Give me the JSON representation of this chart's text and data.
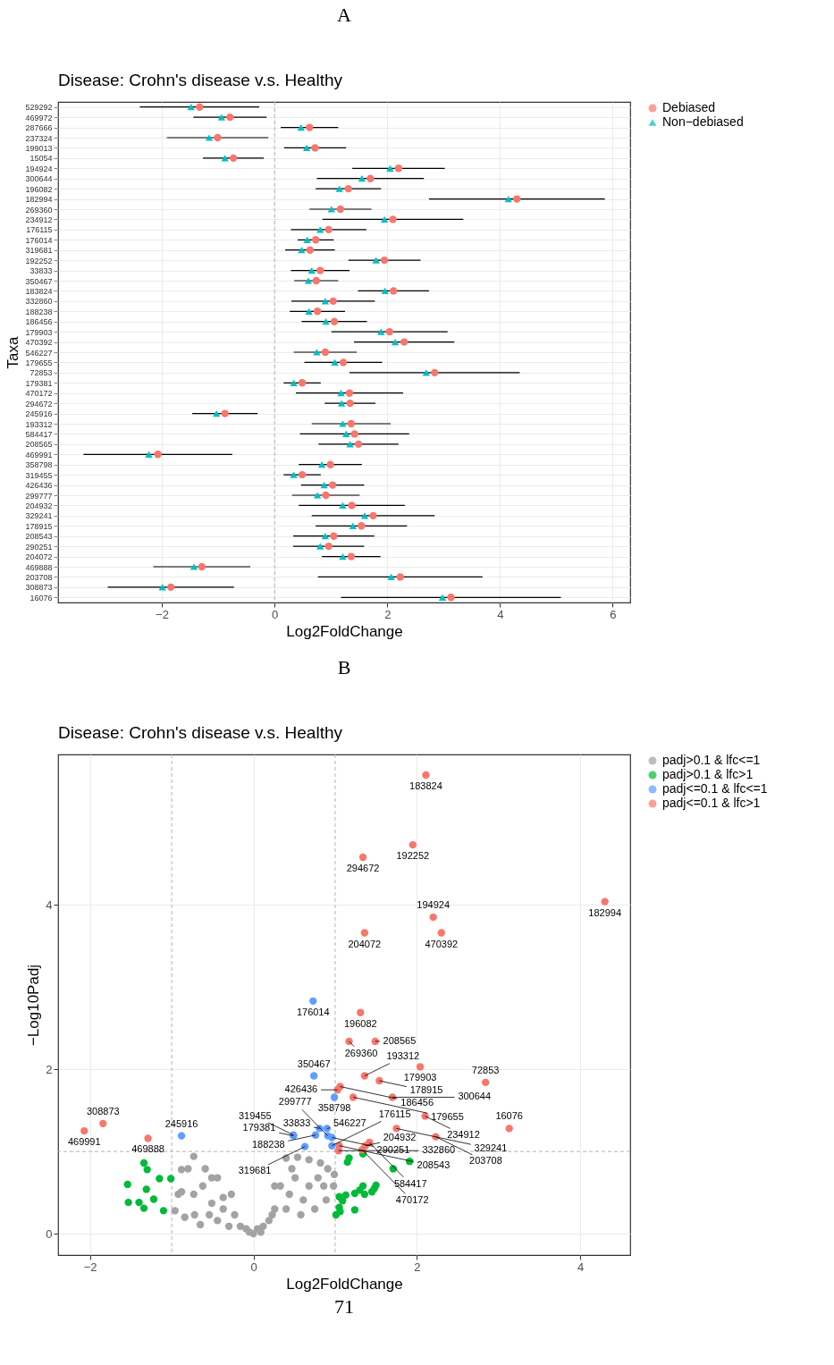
{
  "chart_data": [
    {
      "type": "scatter",
      "orientation": "horizontal",
      "title": "A",
      "subtitle": "Disease: Crohn's disease v.s. Healthy",
      "xlabel": "Log2FoldChange",
      "ylabel": "Taxa",
      "categories": [
        "529292",
        "469972",
        "287666",
        "237324",
        "199013",
        "15054",
        "194924",
        "300644",
        "196082",
        "182994",
        "269360",
        "234912",
        "176115",
        "176014",
        "319681",
        "192252",
        "33833",
        "350467",
        "183824",
        "332860",
        "188238",
        "186456",
        "179903",
        "470392",
        "546227",
        "179655",
        "72853",
        "179381",
        "470172",
        "294672",
        "245916",
        "193312",
        "584417",
        "208565",
        "469991",
        "358798",
        "319455",
        "426436",
        "299777",
        "204932",
        "329241",
        "178915",
        "208543",
        "290251",
        "204072",
        "469888",
        "203708",
        "308873",
        "16076"
      ],
      "series": [
        {
          "name": "Debiased",
          "color": "#f8766d",
          "marker": "circle",
          "values": [
            -1.33,
            -0.79,
            0.62,
            -1.01,
            0.72,
            -0.73,
            2.2,
            1.7,
            1.31,
            4.3,
            1.17,
            2.1,
            0.96,
            0.73,
            0.63,
            1.95,
            0.81,
            0.74,
            2.11,
            1.04,
            0.76,
            1.06,
            2.04,
            2.3,
            0.9,
            1.22,
            2.84,
            0.49,
            1.33,
            1.34,
            -0.88,
            1.36,
            1.42,
            1.49,
            -2.07,
            0.99,
            0.49,
            1.03,
            0.91,
            1.37,
            1.75,
            1.54,
            1.05,
            0.96,
            1.36,
            -1.29,
            2.23,
            -1.84,
            3.13
          ],
          "errors": [
            1.06,
            0.65,
            0.51,
            0.9,
            0.55,
            0.54,
            0.82,
            0.95,
            0.58,
            1.56,
            0.55,
            1.25,
            0.67,
            0.32,
            0.44,
            0.64,
            0.52,
            0.39,
            0.63,
            0.74,
            0.49,
            0.58,
            1.03,
            0.89,
            0.56,
            0.69,
            1.51,
            0.33,
            0.95,
            0.45,
            0.58,
            0.7,
            0.97,
            0.71,
            1.32,
            0.56,
            0.33,
            0.56,
            0.6,
            0.94,
            1.09,
            0.81,
            0.72,
            0.63,
            0.52,
            0.86,
            1.46,
            1.12,
            1.95
          ]
        },
        {
          "name": "Non−debiased",
          "color": "#00bfc4",
          "marker": "triangle",
          "values": [
            -1.48,
            -0.94,
            0.47,
            -1.16,
            0.57,
            -0.88,
            2.05,
            1.55,
            1.15,
            4.15,
            1.01,
            1.95,
            0.81,
            0.58,
            0.48,
            1.8,
            0.66,
            0.6,
            1.96,
            0.9,
            0.61,
            0.91,
            1.89,
            2.14,
            0.75,
            1.07,
            2.69,
            0.34,
            1.18,
            1.19,
            -1.03,
            1.21,
            1.27,
            1.34,
            -2.23,
            0.84,
            0.34,
            0.88,
            0.76,
            1.21,
            1.6,
            1.39,
            0.9,
            0.81,
            1.21,
            -1.43,
            2.07,
            -1.99,
            2.98
          ]
        }
      ],
      "xlim": [
        -3.84,
        6.31
      ],
      "xticks": [
        -2,
        0,
        2,
        4,
        6
      ],
      "ref_lines": [
        {
          "axis": "x",
          "value": 0,
          "color": "#b3b3b3",
          "line_style": "dashed"
        }
      ],
      "grid": true,
      "legend": "right"
    },
    {
      "type": "scatter",
      "title": "B",
      "subtitle": "Disease: Crohn's disease v.s. Healthy",
      "xlabel": "Log2FoldChange",
      "ylabel": "−Log10Padj",
      "marker": "circle",
      "series": [
        {
          "name": "padj>0.1 & lfc<=1",
          "color": "#a3a3a3",
          "x": [
            -0.73,
            -0.88,
            -0.8,
            -0.59,
            -0.51,
            -0.44,
            -0.62,
            -0.88,
            -0.73,
            -0.96,
            -0.84,
            -0.65,
            -0.51,
            -0.37,
            -0.27,
            -0.23,
            -0.09,
            0.0,
            0.12,
            0.23,
            0.33,
            0.4,
            0.54,
            0.68,
            0.82,
            0.91,
            0.79,
            0.51,
            0.44,
            0.61,
            0.86,
            0.98,
            0.75,
            0.58,
            0.26,
            0.19,
            0.4,
            0.99,
            -0.37,
            -0.54,
            -0.72,
            -0.3,
            -0.16,
            0.09,
            -0.05,
            -0.92,
            0.68,
            0.89,
            0.47,
            -0.44,
            0.26,
            0.05
          ],
          "values": [
            0.94,
            0.78,
            0.79,
            0.79,
            0.68,
            0.68,
            0.58,
            0.51,
            0.48,
            0.28,
            0.2,
            0.11,
            0.37,
            0.3,
            0.48,
            0.23,
            0.06,
            0.0,
            0.09,
            0.23,
            0.58,
            0.92,
            0.93,
            0.9,
            0.86,
            0.79,
            0.68,
            0.68,
            0.48,
            0.41,
            0.58,
            0.58,
            0.3,
            0.23,
            0.3,
            0.16,
            0.3,
            0.72,
            0.44,
            0.23,
            0.23,
            0.09,
            0.09,
            0.02,
            0.02,
            0.48,
            0.58,
            0.41,
            0.79,
            0.16,
            0.58,
            0.06
          ]
        },
        {
          "name": "padj>0.1 & lfc>1",
          "color": "#00ba38",
          "x": [
            -1.34,
            -1.3,
            -1.15,
            -1.01,
            -1.54,
            -1.31,
            -1.22,
            -1.53,
            -1.4,
            -1.34,
            -1.1,
            1.17,
            1.15,
            1.34,
            1.91,
            1.71,
            1.5,
            1.48,
            1.45,
            1.34,
            1.3,
            1.24,
            1.36,
            1.13,
            1.05,
            1.09,
            1.24,
            1.05,
            1.03,
            1.01,
            1.06
          ],
          "values": [
            0.86,
            0.78,
            0.67,
            0.67,
            0.6,
            0.54,
            0.42,
            0.38,
            0.38,
            0.31,
            0.28,
            0.92,
            0.87,
            0.97,
            0.88,
            0.79,
            0.59,
            0.55,
            0.51,
            0.58,
            0.53,
            0.49,
            0.48,
            0.47,
            0.45,
            0.4,
            0.29,
            0.32,
            null,
            0.23,
            0.27
          ]
        },
        {
          "name": "padj<=0.1 & lfc<=1",
          "color": "#619cff",
          "x": [
            0.73,
            0.74,
            0.99,
            0.81,
            0.9,
            0.76,
            0.49,
            0.49,
            0.91,
            0.96,
            -0.88,
            0.63,
            0.96
          ],
          "values": [
            2.83,
            1.92,
            1.66,
            1.28,
            1.28,
            1.2,
            1.19,
            1.2,
            1.19,
            1.17,
            1.19,
            1.06,
            1.07
          ]
        },
        {
          "name": "padj<=0.1 & lfc>1",
          "color": "#f8766d",
          "x": [
            2.11,
            1.34,
            1.95,
            4.3,
            2.2,
            2.3,
            1.36,
            1.31,
            1.17,
            1.49,
            2.04,
            1.36,
            1.54,
            1.03,
            1.06,
            1.22,
            1.7,
            2.84,
            1.05,
            1.42,
            1.04,
            1.37,
            1.33,
            2.1,
            1.75,
            2.23,
            3.13,
            -1.84,
            -2.07,
            -1.29
          ],
          "values": [
            5.58,
            4.58,
            4.73,
            4.04,
            3.85,
            3.66,
            3.66,
            2.69,
            2.34,
            2.34,
            2.03,
            1.92,
            1.86,
            1.75,
            1.79,
            1.66,
            1.66,
            1.84,
            1.07,
            1.11,
            1.01,
            1.07,
            1.02,
            1.43,
            1.28,
            1.18,
            1.28,
            1.34,
            1.25,
            1.16
          ]
        }
      ],
      "annotations": [
        {
          "text": "176014",
          "x": 0.73,
          "y": 2.83
        },
        {
          "text": "350467",
          "x": 0.74,
          "y": 1.92
        },
        {
          "text": "358798",
          "x": 0.99,
          "y": 1.66
        },
        {
          "text": "33833",
          "x": 0.81,
          "y": 1.28
        },
        {
          "text": "546227",
          "x": 0.9,
          "y": 1.28
        },
        {
          "text": "188238",
          "x": 0.76,
          "y": 1.2
        },
        {
          "text": "179381",
          "x": 0.49,
          "y": 1.19
        },
        {
          "text": "319455",
          "x": 0.49,
          "y": 1.2
        },
        {
          "text": "299777",
          "x": 0.91,
          "y": 1.19
        },
        {
          "text": "290251",
          "x": 0.96,
          "y": 1.17
        },
        {
          "text": "245916",
          "x": -0.88,
          "y": 1.19
        },
        {
          "text": "319681",
          "x": 0.63,
          "y": 1.06
        },
        {
          "text": "176115",
          "x": 0.96,
          "y": 1.07
        },
        {
          "text": "183824",
          "x": 2.11,
          "y": 5.58
        },
        {
          "text": "294672",
          "x": 1.34,
          "y": 4.58
        },
        {
          "text": "192252",
          "x": 1.95,
          "y": 4.73
        },
        {
          "text": "182994",
          "x": 4.3,
          "y": 4.04
        },
        {
          "text": "194924",
          "x": 2.2,
          "y": 3.85
        },
        {
          "text": "470392",
          "x": 2.3,
          "y": 3.66
        },
        {
          "text": "204072",
          "x": 1.36,
          "y": 3.66
        },
        {
          "text": "196082",
          "x": 1.31,
          "y": 2.69
        },
        {
          "text": "269360",
          "x": 1.17,
          "y": 2.34
        },
        {
          "text": "208565",
          "x": 1.49,
          "y": 2.34
        },
        {
          "text": "179903",
          "x": 2.04,
          "y": 2.03
        },
        {
          "text": "193312",
          "x": 1.36,
          "y": 1.92
        },
        {
          "text": "178915",
          "x": 1.54,
          "y": 1.86
        },
        {
          "text": "426436",
          "x": 1.03,
          "y": 1.75
        },
        {
          "text": "186456",
          "x": 1.06,
          "y": 1.79
        },
        {
          "text": "179655",
          "x": 1.22,
          "y": 1.66
        },
        {
          "text": "300644",
          "x": 1.7,
          "y": 1.66
        },
        {
          "text": "72853",
          "x": 2.84,
          "y": 1.84
        },
        {
          "text": "208543",
          "x": 1.05,
          "y": 1.07
        },
        {
          "text": "584417",
          "x": 1.42,
          "y": 1.11
        },
        {
          "text": "332860",
          "x": 1.04,
          "y": 1.01
        },
        {
          "text": "204932",
          "x": 1.37,
          "y": 1.07
        },
        {
          "text": "470172",
          "x": 1.33,
          "y": 1.02
        },
        {
          "text": "234912",
          "x": 2.1,
          "y": 1.43
        },
        {
          "text": "329241",
          "x": 1.75,
          "y": 1.28
        },
        {
          "text": "203708",
          "x": 2.23,
          "y": 1.18
        },
        {
          "text": "16076",
          "x": 3.13,
          "y": 1.28
        },
        {
          "text": "308873",
          "x": -1.84,
          "y": 1.34
        },
        {
          "text": "469991",
          "x": -2.07,
          "y": 1.25
        },
        {
          "text": "469888",
          "x": -1.29,
          "y": 1.16
        },
        "71"
      ],
      "xlim": [
        -2.39,
        4.61
      ],
      "xticks": [
        -2,
        0,
        2,
        4
      ],
      "ylim": [
        -0.26,
        5.83
      ],
      "yticks": [
        0,
        2,
        4
      ],
      "ref_lines": [
        {
          "axis": "x",
          "value": -1,
          "color": "#b3b3b3",
          "line_style": "dashed"
        },
        {
          "axis": "x",
          "value": 1,
          "color": "#b3b3b3",
          "line_style": "dashed"
        },
        {
          "axis": "y",
          "value": 1,
          "color": "#b3b3b3",
          "line_style": "dashed"
        }
      ],
      "grid": true,
      "legend": "right"
    }
  ]
}
